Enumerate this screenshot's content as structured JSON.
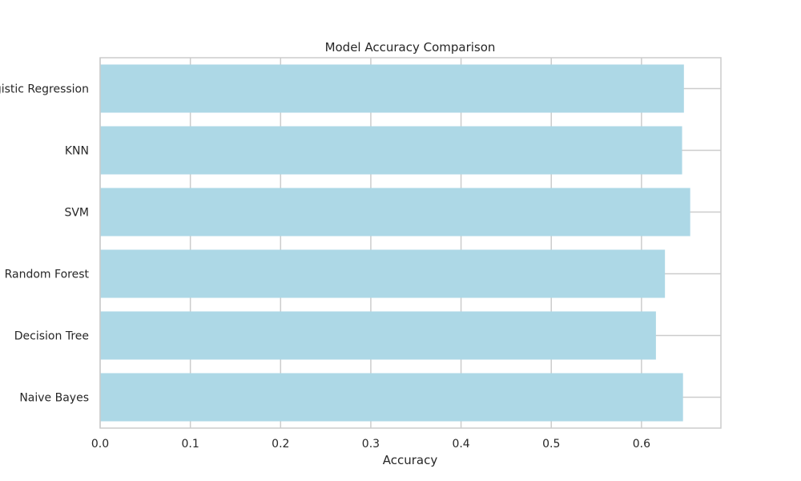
{
  "chart_data": {
    "type": "bar",
    "orientation": "horizontal",
    "title": "Model Accuracy Comparison",
    "xlabel": "Accuracy",
    "ylabel": "",
    "categories": [
      "Logistic Regression",
      "KNN",
      "SVM",
      "Random Forest",
      "Decision Tree",
      "Naive Bayes"
    ],
    "values": [
      0.647,
      0.645,
      0.654,
      0.626,
      0.616,
      0.646
    ],
    "xlim": [
      0,
      0.688
    ],
    "xticks": [
      "0.0",
      "0.1",
      "0.2",
      "0.3",
      "0.4",
      "0.5",
      "0.6"
    ],
    "grid": true,
    "bar_color": "#add8e6",
    "grid_color": "#cccccc",
    "frame_color": "#cccccc"
  }
}
